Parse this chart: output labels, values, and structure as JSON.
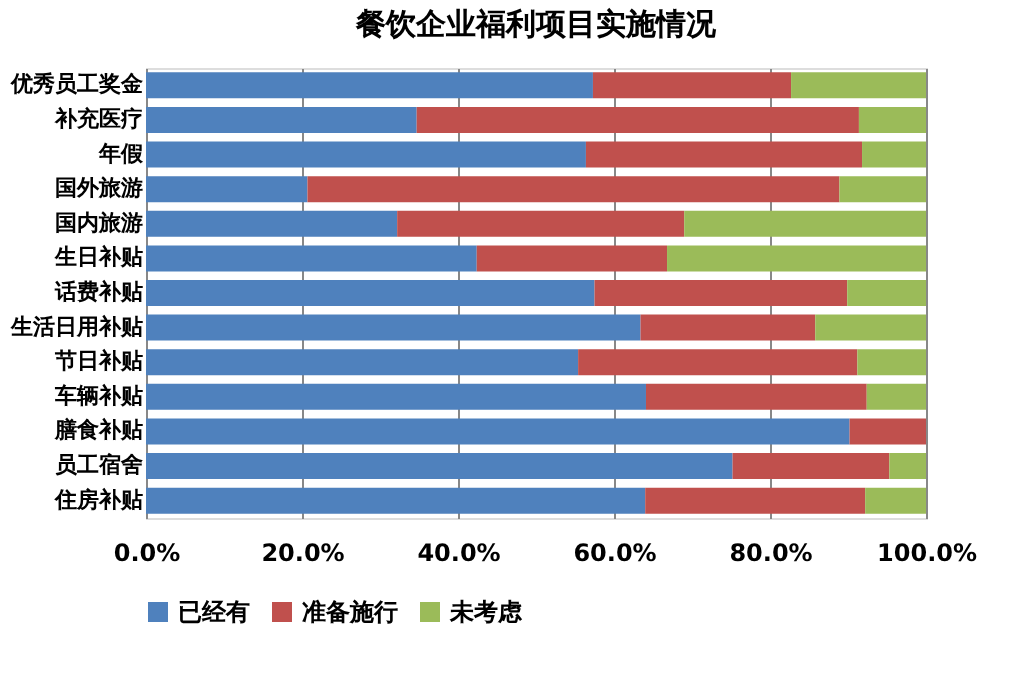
{
  "chart_data": {
    "type": "bar",
    "title": "餐饮企业福利项目实施情况",
    "orientation": "horizontal",
    "stacked": true,
    "categories": [
      "优秀员工奖金",
      "补充医疗",
      "年假",
      "国外旅游",
      "国内旅游",
      "生日补贴",
      "话费补贴",
      "生活日用补贴",
      "节日补贴",
      "车辆补贴",
      "膳食补贴",
      "员工宿舍",
      "住房补贴"
    ],
    "series": [
      {
        "name": "已经有",
        "color": "#4f81bd",
        "values": [
          57.3,
          34.7,
          56.4,
          20.7,
          32.2,
          42.4,
          57.5,
          63.4,
          55.4,
          64.1,
          90.2,
          75.2,
          64.0
        ]
      },
      {
        "name": "准备施行",
        "color": "#c0504d",
        "values": [
          25.4,
          56.7,
          35.4,
          68.2,
          36.8,
          24.4,
          32.4,
          22.4,
          35.8,
          28.3,
          9.8,
          20.1,
          28.2
        ]
      },
      {
        "name": "未考虑",
        "color": "#9bbb59",
        "values": [
          17.3,
          8.6,
          8.2,
          11.1,
          31.0,
          33.2,
          10.1,
          14.2,
          8.8,
          7.6,
          null,
          4.7,
          7.8
        ]
      }
    ],
    "xlim": [
      0,
      100
    ],
    "xticks": [
      {
        "value": 0,
        "label": "0.0%"
      },
      {
        "value": 20,
        "label": "20.0%"
      },
      {
        "value": 40,
        "label": "40.0%"
      },
      {
        "value": 60,
        "label": "60.0%"
      },
      {
        "value": 80,
        "label": "80.0%"
      },
      {
        "value": 100,
        "label": "100.0%"
      }
    ],
    "grid": "x",
    "legend": "bottom"
  }
}
